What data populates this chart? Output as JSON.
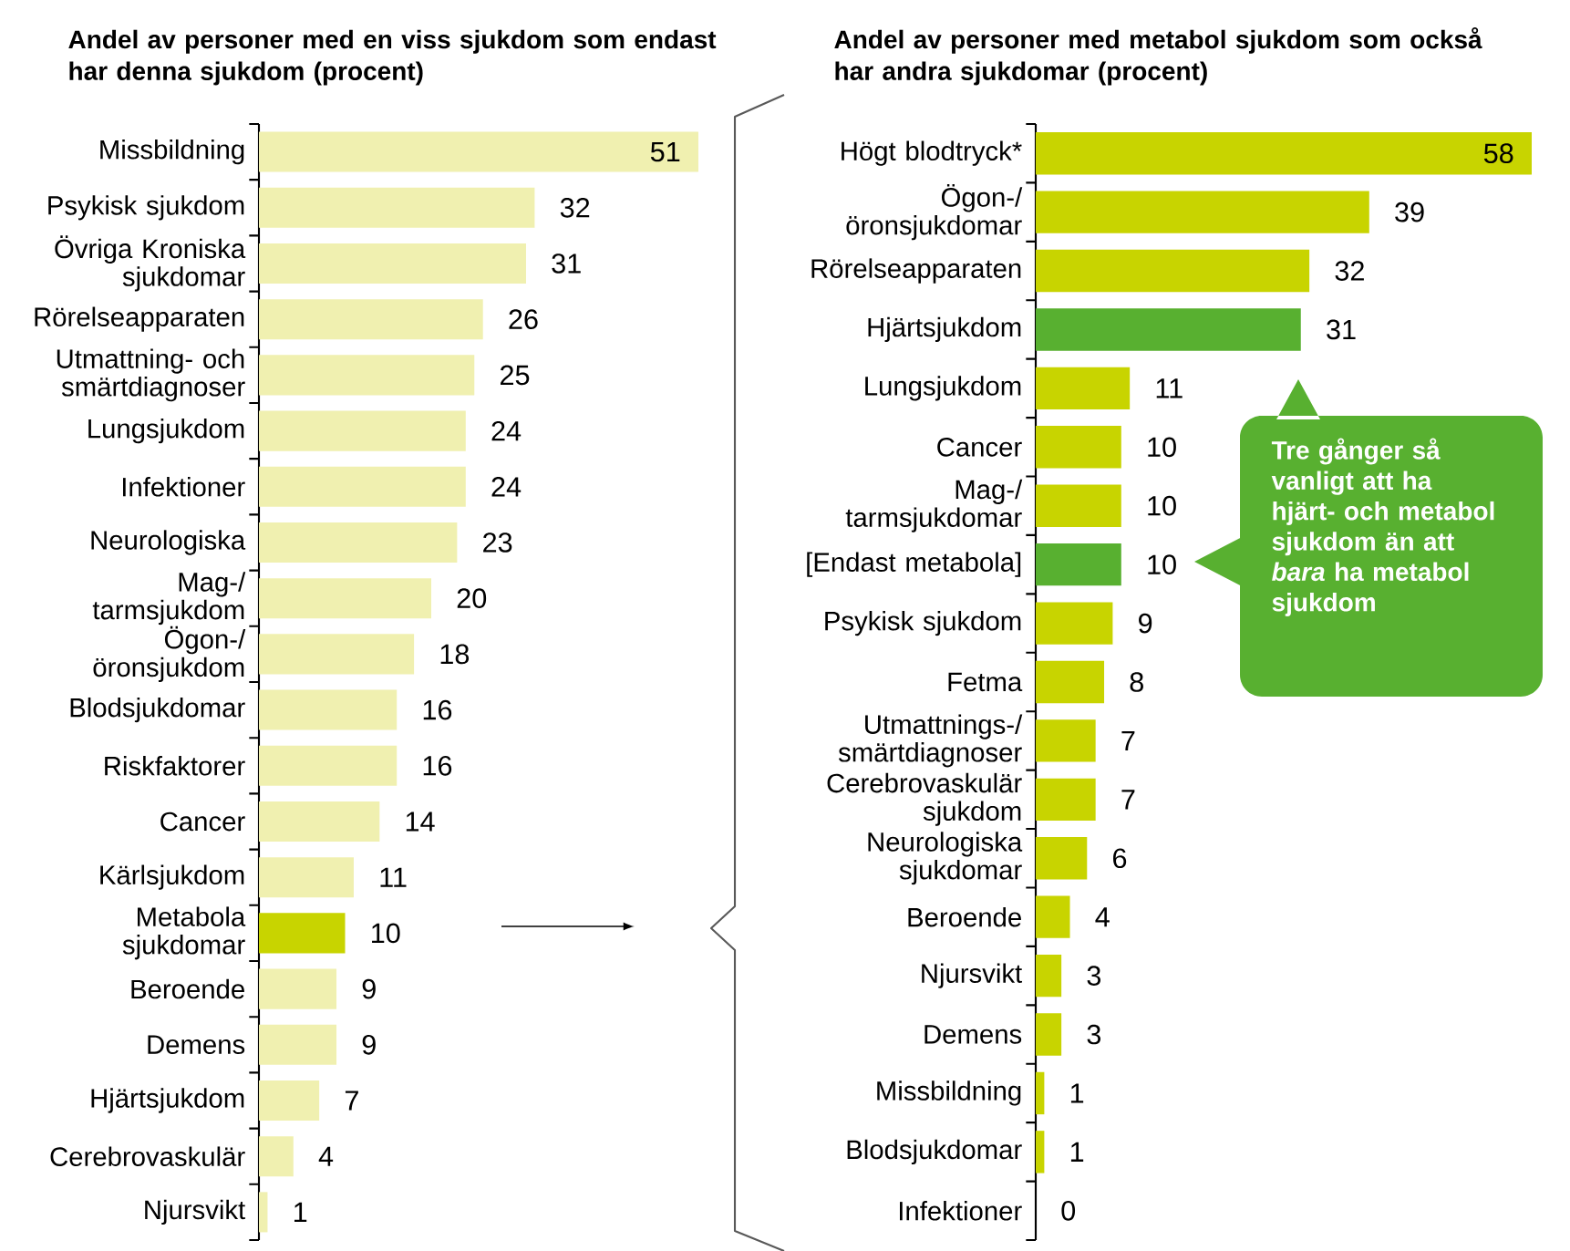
{
  "chart_data": [
    {
      "type": "bar",
      "orientation": "horizontal",
      "data_labels": true,
      "title": "Andel av personer med en viss sjukdom som endast har denna sjukdom (procent)",
      "categories": [
        "Missbildning",
        "Psykisk sjukdom",
        "Övriga Kroniska sjukdomar",
        "Rörelseapparaten",
        "Utmattning- och smärtdiagnoser",
        "Lungsjukdom",
        "Infektioner",
        "Neurologiska",
        "Mag-/ tarmsjukdom",
        "Ögon-/ öronsjukdom",
        "Blodsjukdomar",
        "Riskfaktorer",
        "Cancer",
        "Kärlsjukdom",
        "Metabola sjukdomar",
        "Beroende",
        "Demens",
        "Hjärtsjukdom",
        "Cerebrovaskulär",
        "Njursvikt"
      ],
      "values": [
        51,
        32,
        31,
        26,
        25,
        24,
        24,
        23,
        20,
        18,
        16,
        16,
        14,
        11,
        10,
        9,
        9,
        7,
        4,
        1
      ],
      "colors": [
        "#f0f0b0",
        "#f0f0b0",
        "#f0f0b0",
        "#f0f0b0",
        "#f0f0b0",
        "#f0f0b0",
        "#f0f0b0",
        "#f0f0b0",
        "#f0f0b0",
        "#f0f0b0",
        "#f0f0b0",
        "#f0f0b0",
        "#f0f0b0",
        "#f0f0b0",
        "#c8d400",
        "#f0f0b0",
        "#f0f0b0",
        "#f0f0b0",
        "#f0f0b0",
        "#f0f0b0"
      ]
    },
    {
      "type": "bar",
      "orientation": "horizontal",
      "data_labels": true,
      "title": "Andel av personer med metabol sjukdom som också har andra sjukdomar (procent)",
      "categories": [
        "Högt blodtryck*",
        "Ögon-/ öronsjukdomar",
        "Rörelseapparaten",
        "Hjärtsjukdom",
        "Lungsjukdom",
        "Cancer",
        "Mag-/ tarmsjukdomar",
        "[Endast metabola]",
        "Psykisk sjukdom",
        "Fetma",
        "Utmattnings-/ smärtdiagnoser",
        "Cerebrovaskulär sjukdom",
        "Neurologiska sjukdomar",
        "Beroende",
        "Njursvikt",
        "Demens",
        "Missbildning",
        "Blodsjukdomar",
        "Infektioner"
      ],
      "values": [
        58,
        39,
        32,
        31,
        11,
        10,
        10,
        10,
        9,
        8,
        7,
        7,
        6,
        4,
        3,
        3,
        1,
        1,
        0
      ],
      "colors": [
        "#c8d400",
        "#c8d400",
        "#c8d400",
        "#58b030",
        "#c8d400",
        "#c8d400",
        "#c8d400",
        "#58b030",
        "#c8d400",
        "#c8d400",
        "#c8d400",
        "#c8d400",
        "#c8d400",
        "#c8d400",
        "#c8d400",
        "#c8d400",
        "#c8d400",
        "#c8d400",
        "#c8d400"
      ],
      "annotations": [
        "Tre gånger så vanligt att ha hjärt- och metabol sjukdom än att *bara* ha metabol sjukdom"
      ]
    }
  ]
}
